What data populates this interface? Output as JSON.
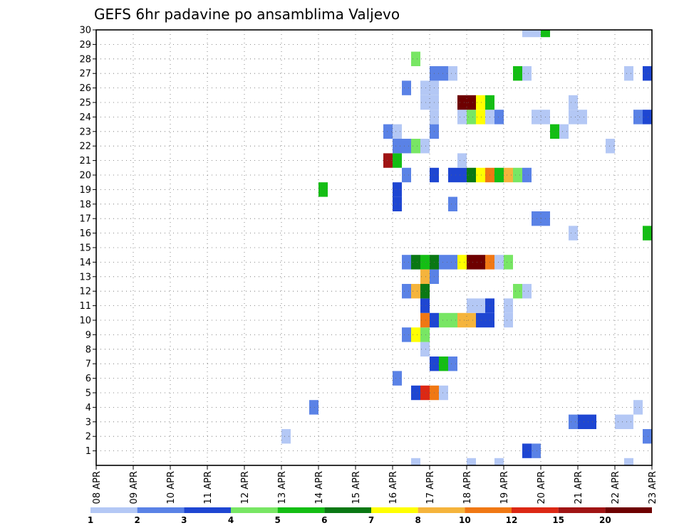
{
  "chart_data": {
    "type": "heatmap",
    "title": "GEFS 6hr padavine po ansamblima Valjevo",
    "xlabel": "",
    "ylabel": "",
    "x_unit": "6h step",
    "x_range": [
      0,
      60
    ],
    "x_tick_labels": [
      "08 APR",
      "09 APR",
      "10 APR",
      "11 APR",
      "12 APR",
      "13 APR",
      "14 APR",
      "15 APR",
      "16 APR",
      "17 APR",
      "18 APR",
      "19 APR",
      "20 APR",
      "21 APR",
      "22 APR",
      "23 APR"
    ],
    "y_range": [
      1,
      30
    ],
    "y_tick_labels": [
      "1",
      "2",
      "3",
      "4",
      "5",
      "6",
      "7",
      "8",
      "9",
      "10",
      "11",
      "12",
      "13",
      "14",
      "15",
      "16",
      "17",
      "18",
      "19",
      "20",
      "21",
      "22",
      "23",
      "24",
      "25",
      "26",
      "27",
      "28",
      "29",
      "30"
    ],
    "grid": true,
    "colorbar": {
      "labels": [
        "1",
        "2",
        "3",
        "4",
        "5",
        "6",
        "7",
        "8",
        "10",
        "12",
        "15",
        "20"
      ],
      "colors": [
        "#b4c8f5",
        "#5a82e6",
        "#1e46d2",
        "#78e664",
        "#14be14",
        "#0a7814",
        "#ffff00",
        "#f5b43c",
        "#f07814",
        "#dc2814",
        "#a01414",
        "#6e0000"
      ]
    },
    "cells": [
      [
        46,
        1,
        3
      ],
      [
        47,
        1,
        2
      ],
      [
        20,
        2,
        1
      ],
      [
        59,
        2,
        2
      ],
      [
        51,
        3,
        2
      ],
      [
        52,
        3,
        3
      ],
      [
        53,
        3,
        3
      ],
      [
        56,
        3,
        1
      ],
      [
        57,
        3,
        1
      ],
      [
        23,
        4,
        2
      ],
      [
        58,
        4,
        1
      ],
      [
        34,
        5,
        3
      ],
      [
        35,
        5,
        10
      ],
      [
        36,
        5,
        9
      ],
      [
        37,
        5,
        1
      ],
      [
        32,
        6,
        2
      ],
      [
        36,
        7,
        3
      ],
      [
        37,
        7,
        5
      ],
      [
        38,
        7,
        2
      ],
      [
        35,
        8,
        1
      ],
      [
        33,
        9,
        2
      ],
      [
        34,
        9,
        7
      ],
      [
        35,
        9,
        4
      ],
      [
        35,
        10,
        9
      ],
      [
        36,
        10,
        3
      ],
      [
        37,
        10,
        4
      ],
      [
        38,
        10,
        4
      ],
      [
        39,
        10,
        8
      ],
      [
        40,
        10,
        8
      ],
      [
        41,
        10,
        3
      ],
      [
        42,
        10,
        3
      ],
      [
        44,
        10,
        1
      ],
      [
        35,
        11,
        3
      ],
      [
        40,
        11,
        1
      ],
      [
        41,
        11,
        1
      ],
      [
        42,
        11,
        3
      ],
      [
        44,
        11,
        1
      ],
      [
        33,
        12,
        2
      ],
      [
        34,
        12,
        8
      ],
      [
        35,
        12,
        6
      ],
      [
        45,
        12,
        4
      ],
      [
        46,
        12,
        1
      ],
      [
        35,
        13,
        8
      ],
      [
        36,
        13,
        2
      ],
      [
        33,
        14,
        2
      ],
      [
        34,
        14,
        6
      ],
      [
        35,
        14,
        5
      ],
      [
        36,
        14,
        6
      ],
      [
        37,
        14,
        2
      ],
      [
        38,
        14,
        2
      ],
      [
        39,
        14,
        7
      ],
      [
        40,
        14,
        12
      ],
      [
        41,
        14,
        12
      ],
      [
        42,
        14,
        9
      ],
      [
        43,
        14,
        1
      ],
      [
        44,
        14,
        4
      ],
      [
        51,
        16,
        1
      ],
      [
        59,
        16,
        5
      ],
      [
        47,
        17,
        2
      ],
      [
        48,
        17,
        2
      ],
      [
        32,
        18,
        3
      ],
      [
        38,
        18,
        2
      ],
      [
        24,
        19,
        5
      ],
      [
        32,
        19,
        3
      ],
      [
        33,
        20,
        2
      ],
      [
        36,
        20,
        3
      ],
      [
        38,
        20,
        3
      ],
      [
        39,
        20,
        3
      ],
      [
        40,
        20,
        6
      ],
      [
        41,
        20,
        7
      ],
      [
        42,
        20,
        9
      ],
      [
        43,
        20,
        5
      ],
      [
        44,
        20,
        8
      ],
      [
        45,
        20,
        4
      ],
      [
        46,
        20,
        2
      ],
      [
        31,
        21,
        11
      ],
      [
        32,
        21,
        5
      ],
      [
        39,
        21,
        1
      ],
      [
        32,
        22,
        2
      ],
      [
        33,
        22,
        2
      ],
      [
        34,
        22,
        4
      ],
      [
        35,
        22,
        1
      ],
      [
        55,
        22,
        1
      ],
      [
        31,
        23,
        2
      ],
      [
        32,
        23,
        1
      ],
      [
        36,
        23,
        2
      ],
      [
        49,
        23,
        5
      ],
      [
        50,
        23,
        1
      ],
      [
        36,
        24,
        1
      ],
      [
        39,
        24,
        1
      ],
      [
        40,
        24,
        4
      ],
      [
        41,
        24,
        7
      ],
      [
        42,
        24,
        1
      ],
      [
        43,
        24,
        2
      ],
      [
        47,
        24,
        1
      ],
      [
        48,
        24,
        1
      ],
      [
        51,
        24,
        1
      ],
      [
        52,
        24,
        1
      ],
      [
        58,
        24,
        2
      ],
      [
        59,
        24,
        3
      ],
      [
        35,
        25,
        1
      ],
      [
        36,
        25,
        1
      ],
      [
        39,
        25,
        12
      ],
      [
        40,
        25,
        12
      ],
      [
        41,
        25,
        7
      ],
      [
        42,
        25,
        5
      ],
      [
        51,
        25,
        1
      ],
      [
        33,
        26,
        2
      ],
      [
        35,
        26,
        1
      ],
      [
        36,
        26,
        1
      ],
      [
        36,
        27,
        2
      ],
      [
        37,
        27,
        2
      ],
      [
        38,
        27,
        1
      ],
      [
        45,
        27,
        5
      ],
      [
        46,
        27,
        1
      ],
      [
        57,
        27,
        1
      ],
      [
        59,
        27,
        3
      ],
      [
        34,
        28,
        4
      ],
      [
        46,
        30,
        1
      ],
      [
        47,
        30,
        1
      ],
      [
        48,
        30,
        5
      ],
      [
        34,
        0,
        1
      ],
      [
        40,
        0,
        1
      ],
      [
        43,
        0,
        1
      ],
      [
        57,
        0,
        1
      ]
    ]
  }
}
